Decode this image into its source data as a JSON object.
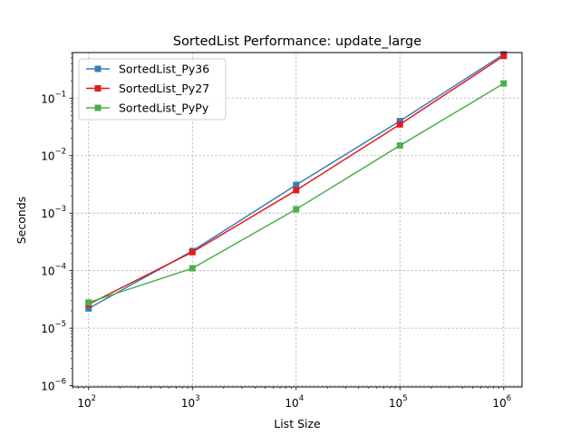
{
  "chart_data": {
    "type": "line",
    "title": "SortedList Performance: update_large",
    "xlabel": "List Size",
    "ylabel": "Seconds",
    "xscale": "log",
    "yscale": "log",
    "xlim": [
      70,
      1500000
    ],
    "ylim": [
      9.5e-07,
      0.62
    ],
    "grid": true,
    "legend_position": "top-left",
    "x": [
      100,
      1000,
      10000,
      100000,
      1000000
    ],
    "x_ticks": [
      {
        "base": "10",
        "exp": "2"
      },
      {
        "base": "10",
        "exp": "3"
      },
      {
        "base": "10",
        "exp": "4"
      },
      {
        "base": "10",
        "exp": "5"
      },
      {
        "base": "10",
        "exp": "6"
      }
    ],
    "y_ticks": [
      {
        "base": "10",
        "exp": "−6"
      },
      {
        "base": "10",
        "exp": "−5"
      },
      {
        "base": "10",
        "exp": "−4"
      },
      {
        "base": "10",
        "exp": "−3"
      },
      {
        "base": "10",
        "exp": "−2"
      },
      {
        "base": "10",
        "exp": "−1"
      }
    ],
    "series": [
      {
        "name": "SortedList_Py36",
        "color": "#377eb8",
        "values": [
          2.2e-05,
          0.00022,
          0.0031,
          0.04,
          0.58
        ]
      },
      {
        "name": "SortedList_Py27",
        "color": "#e41a1c",
        "values": [
          2.6e-05,
          0.00021,
          0.0025,
          0.035,
          0.54
        ]
      },
      {
        "name": "SortedList_PyPy",
        "color": "#4daf4a",
        "values": [
          2.8e-05,
          0.00011,
          0.00117,
          0.015,
          0.18
        ]
      }
    ]
  }
}
